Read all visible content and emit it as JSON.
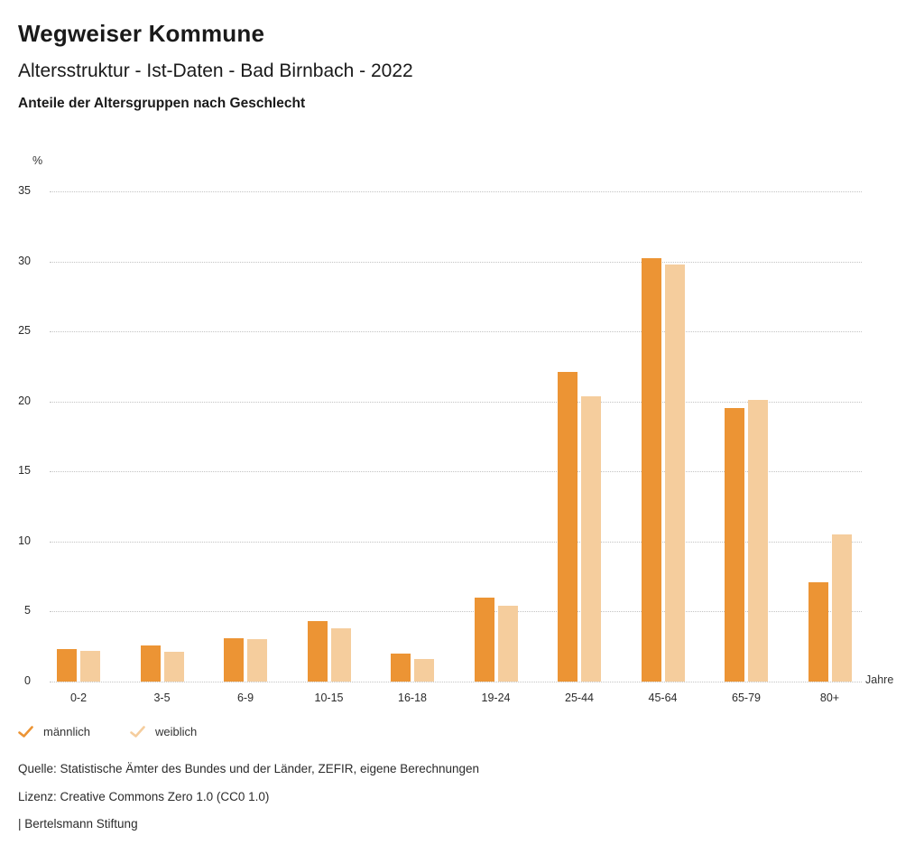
{
  "header": {
    "title": "Wegweiser Kommune",
    "subtitle": "Altersstruktur - Ist-Daten - Bad Birnbach - 2022",
    "caption": "Anteile der Altersgruppen nach Geschlecht"
  },
  "chart_data": {
    "type": "bar",
    "title": "Anteile der Altersgruppen nach Geschlecht",
    "unit_label": "%",
    "xlabel": "Jahre",
    "categories": [
      "0-2",
      "3-5",
      "6-9",
      "10-15",
      "16-18",
      "19-24",
      "25-44",
      "45-64",
      "65-79",
      "80+"
    ],
    "series": [
      {
        "name": "männlich",
        "color": "#ec9434",
        "values": [
          2.3,
          2.6,
          3.1,
          4.3,
          2.0,
          6.0,
          22.1,
          30.2,
          19.5,
          7.1
        ]
      },
      {
        "name": "weiblich",
        "color": "#f5cd9d",
        "values": [
          2.2,
          2.1,
          3.0,
          3.8,
          1.6,
          5.4,
          20.4,
          29.8,
          20.1,
          10.5
        ]
      }
    ],
    "ylim": [
      0,
      35
    ],
    "yticks": [
      0,
      5,
      10,
      15,
      20,
      25,
      30,
      35
    ],
    "grid": "dotted horizontal",
    "legend_position": "bottom-left"
  },
  "footer": {
    "source": "Quelle: Statistische Ämter des Bundes und der Länder, ZEFIR, eigene Berechnungen",
    "license": "Lizenz: Creative Commons Zero 1.0 (CC0 1.0)",
    "attribution": "| Bertelsmann Stiftung"
  }
}
